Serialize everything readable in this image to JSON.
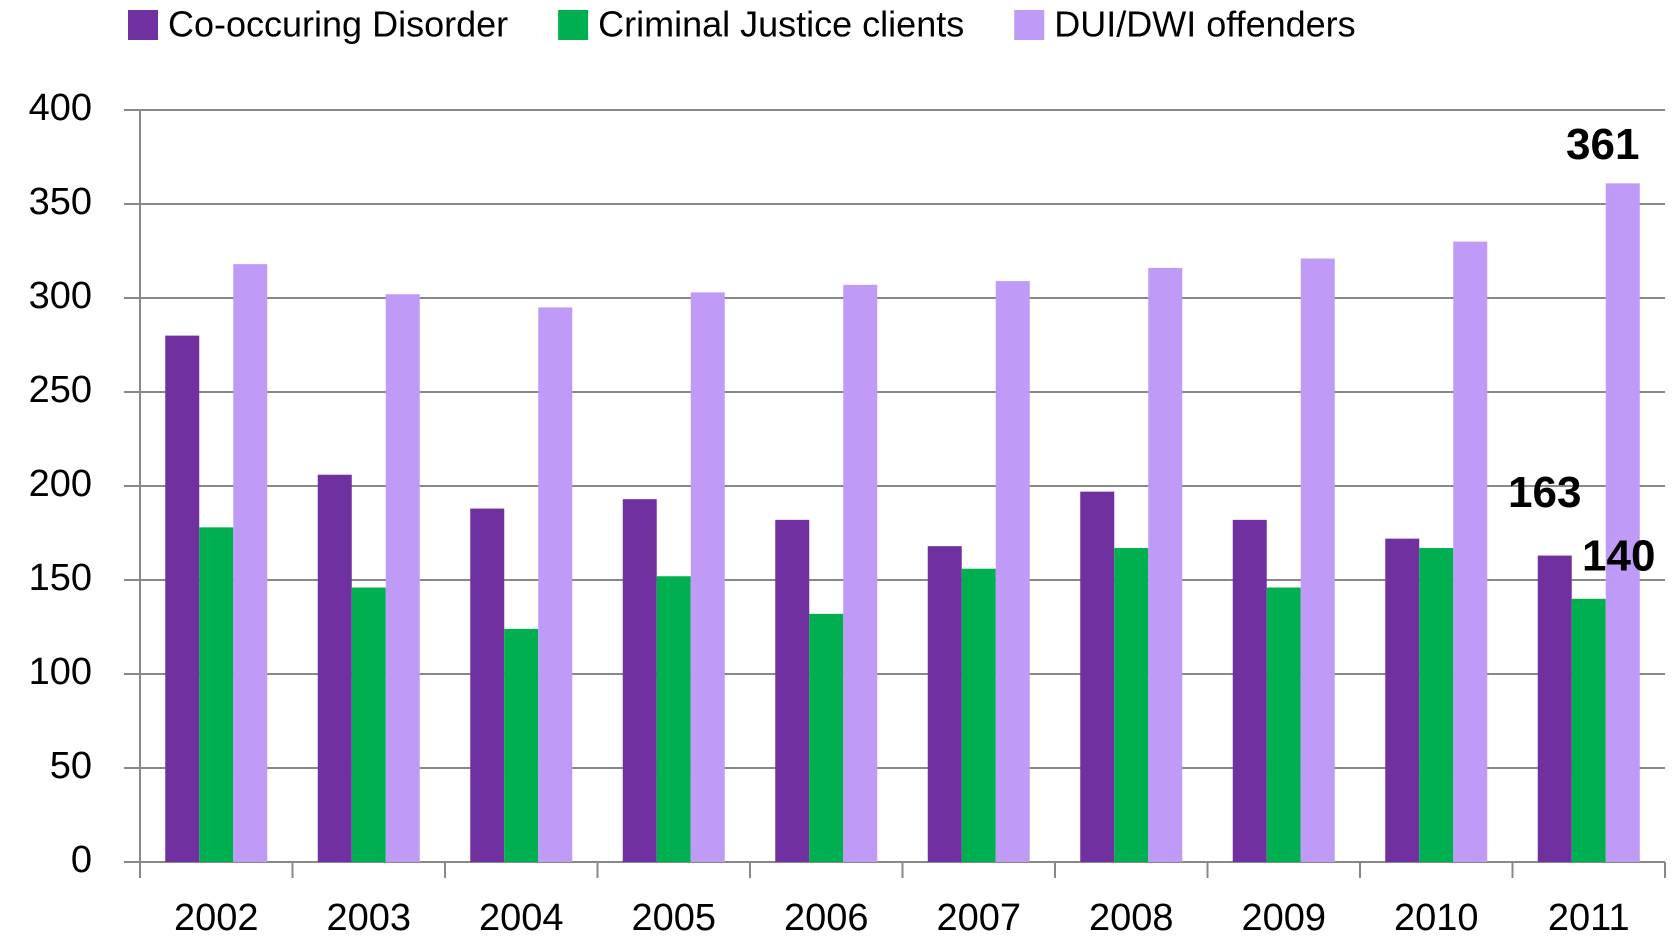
{
  "chart_data": {
    "type": "bar",
    "categories": [
      "2002",
      "2003",
      "2004",
      "2005",
      "2006",
      "2007",
      "2008",
      "2009",
      "2010",
      "2011"
    ],
    "series": [
      {
        "name": "Co-occuring Disorder",
        "color": "#7030a0",
        "values": [
          280,
          206,
          188,
          193,
          182,
          168,
          197,
          182,
          172,
          163
        ]
      },
      {
        "name": "Criminal Justice clients",
        "color": "#00b050",
        "values": [
          178,
          146,
          124,
          152,
          132,
          156,
          167,
          146,
          167,
          140
        ]
      },
      {
        "name": "DUI/DWI offenders",
        "color": "#bf9bf7",
        "values": [
          318,
          302,
          295,
          303,
          307,
          309,
          316,
          321,
          330,
          361
        ]
      }
    ],
    "ylim": [
      0,
      400
    ],
    "yticks": [
      0,
      50,
      100,
      150,
      200,
      250,
      300,
      350,
      400
    ],
    "grid": true,
    "legend": "top",
    "data_labels": "last"
  }
}
